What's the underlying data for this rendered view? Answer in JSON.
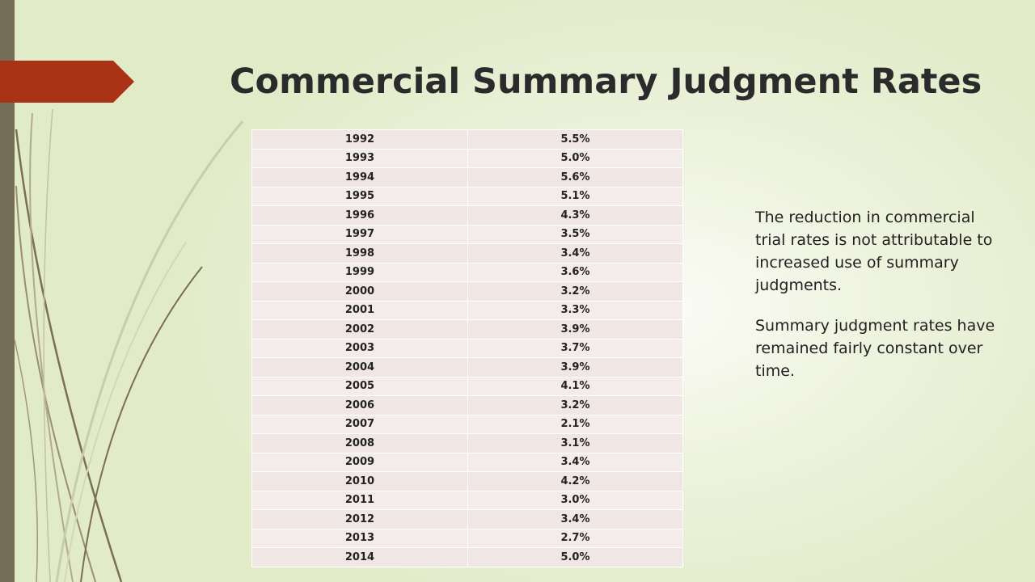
{
  "slide": {
    "title": "Commercial Summary Judgment Rates",
    "colors": {
      "accent_arrow": "#a93314",
      "left_bar": "#766d57",
      "background": "#e6edd3"
    }
  },
  "table": {
    "rows": [
      {
        "year": "1992",
        "rate": "5.5%"
      },
      {
        "year": "1993",
        "rate": "5.0%"
      },
      {
        "year": "1994",
        "rate": "5.6%"
      },
      {
        "year": "1995",
        "rate": "5.1%"
      },
      {
        "year": "1996",
        "rate": "4.3%"
      },
      {
        "year": "1997",
        "rate": "3.5%"
      },
      {
        "year": "1998",
        "rate": "3.4%"
      },
      {
        "year": "1999",
        "rate": "3.6%"
      },
      {
        "year": "2000",
        "rate": "3.2%"
      },
      {
        "year": "2001",
        "rate": "3.3%"
      },
      {
        "year": "2002",
        "rate": "3.9%"
      },
      {
        "year": "2003",
        "rate": "3.7%"
      },
      {
        "year": "2004",
        "rate": "3.9%"
      },
      {
        "year": "2005",
        "rate": "4.1%"
      },
      {
        "year": "2006",
        "rate": "3.2%"
      },
      {
        "year": "2007",
        "rate": "2.1%"
      },
      {
        "year": "2008",
        "rate": "3.1%"
      },
      {
        "year": "2009",
        "rate": "3.4%"
      },
      {
        "year": "2010",
        "rate": "4.2%"
      },
      {
        "year": "2011",
        "rate": "3.0%"
      },
      {
        "year": "2012",
        "rate": "3.4%"
      },
      {
        "year": "2013",
        "rate": "2.7%"
      },
      {
        "year": "2014",
        "rate": "5.0%"
      }
    ]
  },
  "notes": {
    "paragraph_1": "The reduction in commercial trial rates is not attributable to increased use of summary judgments.",
    "paragraph_2": "Summary judgment rates have remained fairly constant over time."
  }
}
